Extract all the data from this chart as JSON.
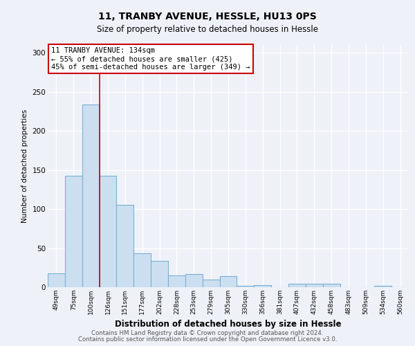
{
  "title1": "11, TRANBY AVENUE, HESSLE, HU13 0PS",
  "title2": "Size of property relative to detached houses in Hessle",
  "xlabel": "Distribution of detached houses by size in Hessle",
  "ylabel": "Number of detached properties",
  "categories": [
    "49sqm",
    "75sqm",
    "100sqm",
    "126sqm",
    "151sqm",
    "177sqm",
    "202sqm",
    "228sqm",
    "253sqm",
    "279sqm",
    "305sqm",
    "330sqm",
    "356sqm",
    "381sqm",
    "407sqm",
    "432sqm",
    "458sqm",
    "483sqm",
    "509sqm",
    "534sqm",
    "560sqm"
  ],
  "values": [
    18,
    143,
    234,
    143,
    105,
    43,
    34,
    15,
    17,
    10,
    14,
    2,
    3,
    0,
    4,
    4,
    4,
    0,
    0,
    2,
    0
  ],
  "bar_color": "#ccdff0",
  "bar_edge_color": "#7ab0d4",
  "vline_x": 2.5,
  "vline_color": "#cc0000",
  "annotation_text": "11 TRANBY AVENUE: 134sqm\n← 55% of detached houses are smaller (425)\n45% of semi-detached houses are larger (349) →",
  "annotation_box_color": "#ffffff",
  "annotation_box_edge": "#cc0000",
  "ylim": [
    0,
    310
  ],
  "yticks": [
    0,
    50,
    100,
    150,
    200,
    250,
    300
  ],
  "footer1": "Contains HM Land Registry data © Crown copyright and database right 2024.",
  "footer2": "Contains public sector information licensed under the Open Government Licence v3.0.",
  "bg_color": "#eef2f8"
}
